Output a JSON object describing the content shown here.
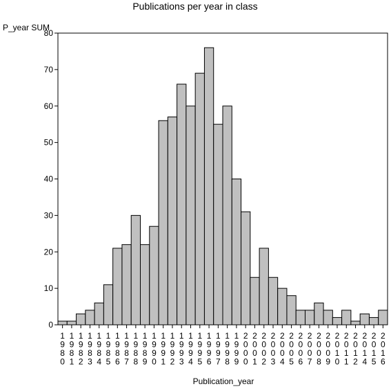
{
  "chart_data": {
    "type": "bar",
    "title": "Publications per year in class",
    "xlabel": "Publication_year",
    "ylabel": "P_year SUM",
    "ylim": [
      0,
      80
    ],
    "yticks": [
      0,
      10,
      20,
      30,
      40,
      50,
      60,
      70,
      80
    ],
    "grid": false,
    "categories": [
      "1980",
      "1981",
      "1982",
      "1983",
      "1984",
      "1985",
      "1986",
      "1987",
      "1988",
      "1989",
      "1990",
      "1991",
      "1992",
      "1993",
      "1994",
      "1995",
      "1996",
      "1997",
      "1998",
      "1999",
      "2000",
      "2001",
      "2002",
      "2003",
      "2004",
      "2005",
      "2006",
      "2007",
      "2008",
      "2009",
      "2010",
      "2011",
      "2012",
      "2014",
      "2015",
      "2016"
    ],
    "values": [
      1,
      1,
      3,
      4,
      6,
      11,
      21,
      22,
      30,
      22,
      27,
      56,
      57,
      66,
      60,
      69,
      76,
      55,
      60,
      40,
      31,
      13,
      21,
      13,
      10,
      8,
      4,
      4,
      6,
      4,
      2,
      4,
      1,
      3,
      2,
      4
    ],
    "colors": {
      "bar_fill": "#c0c0c0",
      "bar_stroke": "#000000",
      "axis": "#000000"
    }
  }
}
